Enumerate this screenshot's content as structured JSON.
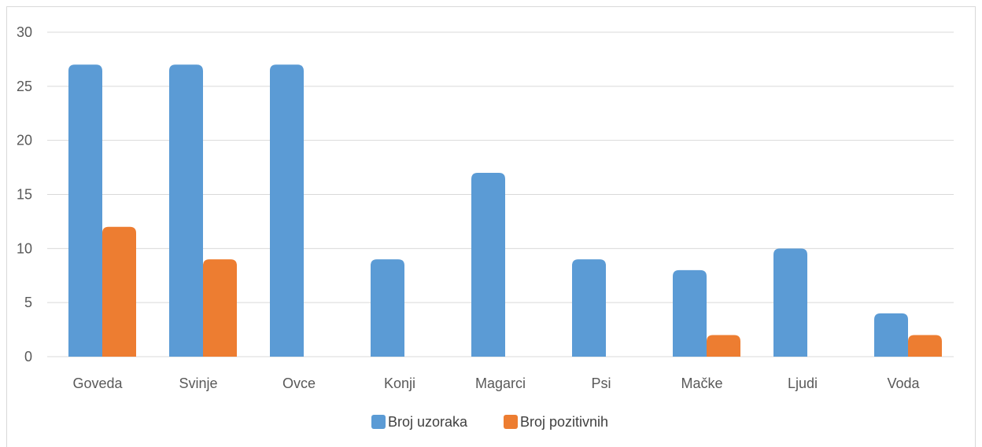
{
  "chart_data": {
    "type": "bar",
    "categories": [
      "Goveda",
      "Svinje",
      "Ovce",
      "Konji",
      "Magarci",
      "Psi",
      "Mačke",
      "Ljudi",
      "Voda"
    ],
    "series": [
      {
        "name": "Broj uzoraka",
        "color": "#5B9BD5",
        "values": [
          27,
          27,
          27,
          9,
          17,
          9,
          8,
          10,
          4
        ]
      },
      {
        "name": "Broj pozitivnih",
        "color": "#ED7D31",
        "values": [
          12,
          9,
          0,
          0,
          0,
          0,
          2,
          0,
          2
        ]
      }
    ],
    "ylim": [
      0,
      30
    ],
    "yticks": [
      0,
      5,
      10,
      15,
      20,
      25,
      30
    ],
    "grid": true,
    "legend_position": "bottom",
    "title": "",
    "xlabel": "",
    "ylabel": ""
  }
}
